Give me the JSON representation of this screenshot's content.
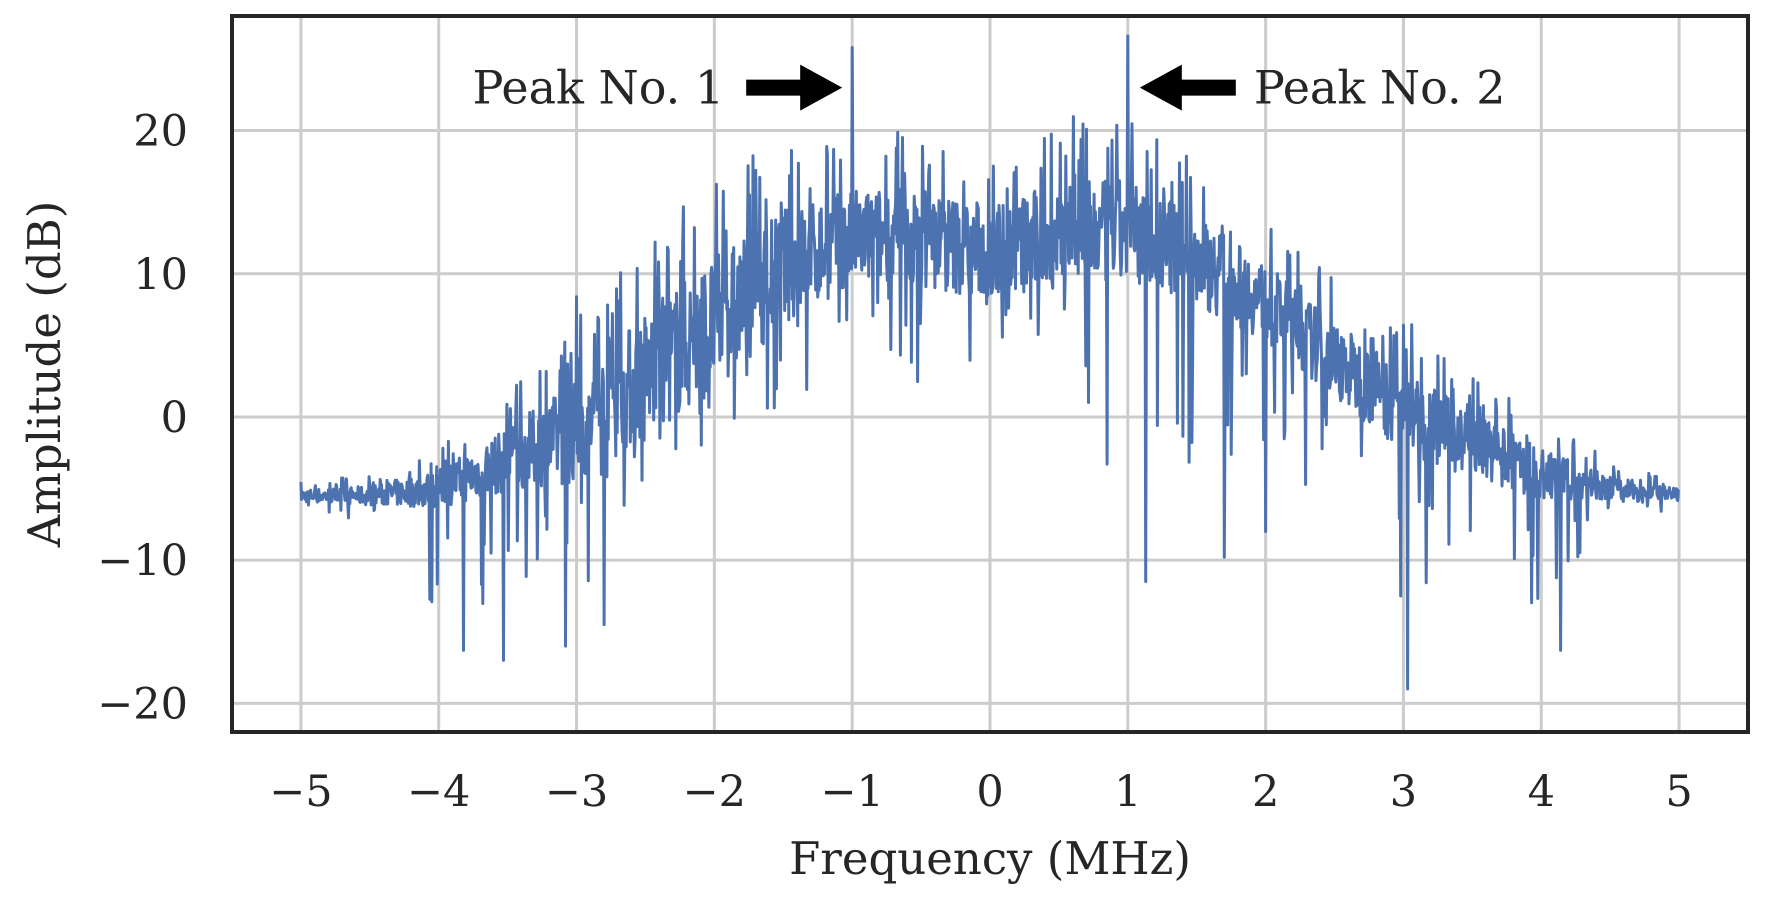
{
  "chart_data": {
    "type": "line",
    "title": "",
    "xlabel": "Frequency (MHz)",
    "ylabel": "Amplitude (dB)",
    "xlim": [
      -5.5,
      5.5
    ],
    "ylim": [
      -22,
      28
    ],
    "xticks": [
      -5,
      -4,
      -3,
      -2,
      -1,
      0,
      1,
      2,
      3,
      4,
      5
    ],
    "yticks": [
      -20,
      -10,
      0,
      10,
      20
    ],
    "xtick_labels": [
      "−5",
      "−4",
      "−3",
      "−2",
      "−1",
      "0",
      "1",
      "2",
      "3",
      "4",
      "5"
    ],
    "ytick_labels": [
      "−20",
      "−10",
      "0",
      "10",
      "20"
    ],
    "grid": true,
    "line_color": "#4c72b0",
    "grid_color": "#cccccc",
    "frame_color": "#262626",
    "series": [
      {
        "name": "spectrum",
        "envelope": {
          "x": [
            -5.0,
            -4.5,
            -4.0,
            -3.5,
            -3.0,
            -2.5,
            -2.0,
            -1.5,
            -1.0,
            -0.5,
            0.0,
            0.5,
            1.0,
            1.5,
            2.0,
            2.5,
            3.0,
            3.5,
            4.0,
            4.5,
            5.0
          ],
          "mean_db": [
            -5.5,
            -5.5,
            -5.0,
            -3.0,
            -1.0,
            3.0,
            6.5,
            10.5,
            12.5,
            12.5,
            11.5,
            12.5,
            13.0,
            11.0,
            8.0,
            4.0,
            0.5,
            -2.0,
            -4.0,
            -5.0,
            -5.5
          ],
          "upper_db": [
            -4.5,
            -4.0,
            -2.0,
            2.0,
            7.0,
            13.0,
            17.0,
            19.5,
            20.0,
            20.5,
            19.0,
            21.0,
            21.0,
            18.0,
            14.0,
            10.0,
            7.0,
            3.0,
            0.0,
            -3.0,
            -4.5
          ],
          "lower_db": [
            -6.5,
            -8.0,
            -16.0,
            -17.0,
            -16.0,
            -10.0,
            -4.0,
            -2.0,
            -1.0,
            -0.5,
            2.0,
            1.0,
            -11.5,
            -10.0,
            -9.0,
            -8.0,
            -19.0,
            -12.0,
            -16.0,
            -8.0,
            -6.5
          ]
        },
        "sample_step_mhz": 0.005,
        "seed": 7
      }
    ],
    "spikes": [
      {
        "x": -1.0,
        "y": 25.8
      },
      {
        "x": 1.0,
        "y": 26.6
      },
      {
        "x": -3.0,
        "y": 8.4
      },
      {
        "x": 3.0,
        "y": 6.4
      },
      {
        "x": 3.03,
        "y": -19.0
      },
      {
        "x": 1.13,
        "y": -11.5
      },
      {
        "x": 4.14,
        "y": -16.3
      },
      {
        "x": -3.82,
        "y": -16.3
      },
      {
        "x": -3.53,
        "y": -17.0
      },
      {
        "x": -4.05,
        "y": -12.9
      },
      {
        "x": -2.8,
        "y": -14.5
      },
      {
        "x": -3.08,
        "y": -16.0
      },
      {
        "x": 1.7,
        "y": -9.8
      },
      {
        "x": 2.0,
        "y": -8.0
      },
      {
        "x": 2.98,
        "y": -12.5
      }
    ],
    "annotations": [
      {
        "text": "Peak No. 1",
        "x": -1.0,
        "y": 23.0,
        "arrow_dir": "right",
        "text_x": -2.0
      },
      {
        "text": "Peak No. 2",
        "x": 1.0,
        "y": 23.0,
        "arrow_dir": "left",
        "text_x": 2.0
      }
    ]
  }
}
